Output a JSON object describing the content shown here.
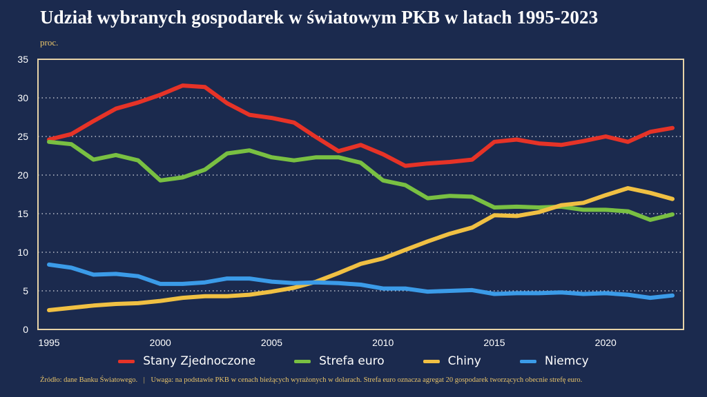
{
  "title": "Udział wybranych gospodarek w światowym PKB w latach 1995-2023",
  "unit": "proc.",
  "footer": {
    "source": "Źródło: dane Banku Światowego.",
    "separator": "|",
    "note": "Uwaga: na podstawie PKB w cenach bieżących wyrażonych w dolarach. Strefa euro oznacza agregat 20 gospodarek tworzących obecnie strefę euro."
  },
  "chart_data": {
    "type": "line",
    "title": "Udział wybranych gospodarek w światowym PKB w latach 1995-2023",
    "ylabel": "proc.",
    "xlabel": "",
    "x": [
      1995,
      1996,
      1997,
      1998,
      1999,
      2000,
      2001,
      2002,
      2003,
      2004,
      2005,
      2006,
      2007,
      2008,
      2009,
      2010,
      2011,
      2012,
      2013,
      2014,
      2015,
      2016,
      2017,
      2018,
      2019,
      2020,
      2021,
      2022,
      2023
    ],
    "xlim": [
      1995,
      2023
    ],
    "ylim": [
      0,
      35
    ],
    "xticks": [
      1995,
      2000,
      2005,
      2010,
      2015,
      2020
    ],
    "yticks": [
      0,
      5,
      10,
      15,
      20,
      25,
      30,
      35
    ],
    "grid": "horizontal dotted",
    "legend_position": "bottom",
    "series": [
      {
        "name": "Stany Zjednoczone",
        "color": "#e63327",
        "values": [
          24.6,
          25.3,
          27.0,
          28.6,
          29.4,
          30.4,
          31.6,
          31.4,
          29.3,
          27.8,
          27.4,
          26.8,
          24.9,
          23.1,
          23.9,
          22.7,
          21.2,
          21.5,
          21.7,
          22.0,
          24.3,
          24.6,
          24.1,
          23.9,
          24.4,
          25.0,
          24.3,
          25.6,
          26.1
        ]
      },
      {
        "name": "Strefa euro",
        "color": "#79c042",
        "values": [
          24.3,
          24.0,
          22.0,
          22.6,
          21.9,
          19.3,
          19.7,
          20.7,
          22.8,
          23.2,
          22.3,
          21.9,
          22.3,
          22.3,
          21.6,
          19.3,
          18.7,
          17.0,
          17.3,
          17.2,
          15.8,
          15.9,
          15.8,
          15.9,
          15.5,
          15.5,
          15.3,
          14.2,
          14.9
        ]
      },
      {
        "name": "Chiny",
        "color": "#f0c043",
        "values": [
          2.5,
          2.8,
          3.1,
          3.3,
          3.4,
          3.7,
          4.1,
          4.3,
          4.3,
          4.5,
          4.9,
          5.4,
          6.2,
          7.3,
          8.5,
          9.2,
          10.3,
          11.4,
          12.4,
          13.2,
          14.8,
          14.7,
          15.2,
          16.1,
          16.4,
          17.4,
          18.3,
          17.7,
          16.9
        ]
      },
      {
        "name": "Niemcy",
        "color": "#3b9be8",
        "values": [
          8.4,
          8.0,
          7.1,
          7.2,
          6.9,
          5.9,
          5.9,
          6.1,
          6.6,
          6.6,
          6.2,
          6.0,
          6.1,
          6.0,
          5.8,
          5.3,
          5.3,
          4.9,
          5.0,
          5.1,
          4.6,
          4.7,
          4.7,
          4.8,
          4.6,
          4.7,
          4.5,
          4.1,
          4.4
        ]
      }
    ]
  }
}
